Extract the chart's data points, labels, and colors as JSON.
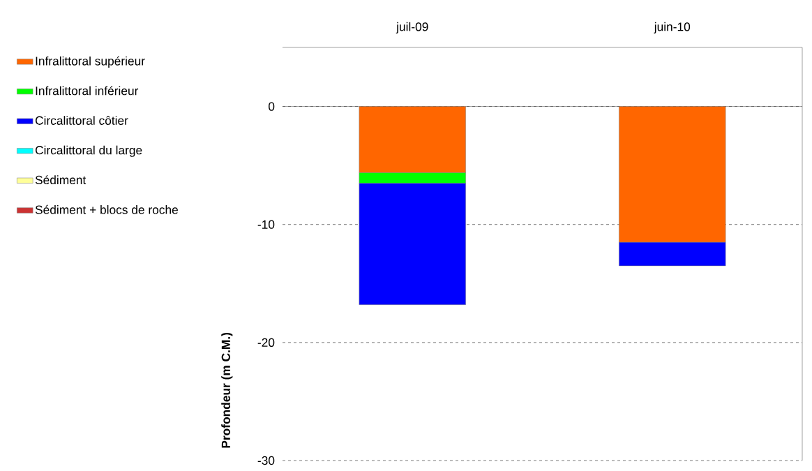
{
  "chart_data": {
    "type": "bar",
    "stacked": true,
    "ylabel": "Profondeur (m C.M.)",
    "categories": [
      "juil-09",
      "juin-10"
    ],
    "series": [
      {
        "name": "Infralittoral supérieur",
        "color": "#ff6600",
        "values": [
          -5.6,
          -11.5
        ]
      },
      {
        "name": "Infralittoral inférieur",
        "color": "#00ff00",
        "values": [
          -0.9,
          null
        ]
      },
      {
        "name": "Circalittoral côtier",
        "color": "#0000ff",
        "values": [
          -10.3,
          -2.0
        ]
      },
      {
        "name": "Circalittoral du large",
        "color": "#00ffff",
        "values": [
          null,
          null
        ]
      },
      {
        "name": "Sédiment",
        "color": "#ffff99",
        "values": [
          null,
          null
        ]
      },
      {
        "name": "Sédiment + blocs de roche",
        "color": "#cc3333",
        "values": [
          null,
          null
        ]
      }
    ],
    "ylim": [
      -30,
      5
    ],
    "yticks": [
      -30,
      -20,
      -10,
      0
    ],
    "grid": "y",
    "legend": "left"
  }
}
